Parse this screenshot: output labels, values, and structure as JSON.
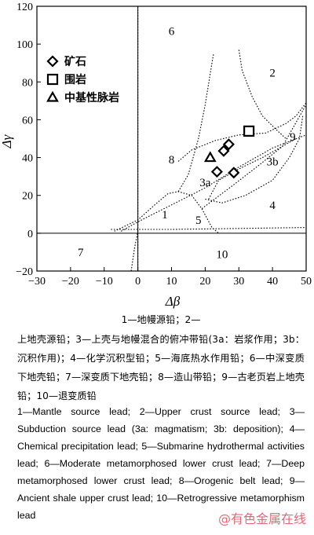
{
  "chart_data": {
    "type": "scatter",
    "xlabel": "Δβ",
    "ylabel": "Δγ",
    "xlim": [
      -30,
      50
    ],
    "ylim": [
      -20,
      120
    ],
    "xticks": [
      -30,
      -20,
      -10,
      0,
      10,
      20,
      30,
      40,
      50
    ],
    "yticks": [
      -20,
      0,
      20,
      40,
      60,
      80,
      100,
      120
    ],
    "grid": false,
    "legend_position": "top-left",
    "series": [
      {
        "name": "矿石",
        "marker": "diamond",
        "points": [
          [
            23.5,
            32.5
          ],
          [
            25.5,
            43.5
          ],
          [
            27,
            47
          ],
          [
            28.5,
            32
          ]
        ]
      },
      {
        "name": "围岩",
        "marker": "square",
        "points": [
          [
            33,
            54
          ]
        ]
      },
      {
        "name": "中基性脉岩",
        "marker": "triangle",
        "points": [
          [
            21.5,
            40
          ]
        ]
      }
    ],
    "region_labels": [
      {
        "text": "1",
        "x": 8,
        "y": 10
      },
      {
        "text": "2",
        "x": 40,
        "y": 85
      },
      {
        "text": "3a",
        "x": 20,
        "y": 27
      },
      {
        "text": "3b",
        "x": 40,
        "y": 38
      },
      {
        "text": "4",
        "x": 40,
        "y": 15
      },
      {
        "text": "5",
        "x": 18,
        "y": 7
      },
      {
        "text": "6",
        "x": 10,
        "y": 107
      },
      {
        "text": "7",
        "x": -17,
        "y": -10
      },
      {
        "text": "8",
        "x": 10,
        "y": 39
      },
      {
        "text": "9",
        "x": 46,
        "y": 51
      },
      {
        "text": "10",
        "x": 25,
        "y": -11
      }
    ]
  },
  "caption": {
    "cn_line1": "1—地幔源铅；2—",
    "cn_rest": "上地壳源铅；3—上壳与地幔混合的俯冲带铅(3a：岩浆作用；3b：沉积作用)；4—化学沉积型铅；5—海底热水作用铅；6—中深变质下地壳铅；7—深变质下地壳铅；8—造山带铅；9—古老页岩上地壳铅；10—退变质铅",
    "en": "1—Mantle source lead; 2—Upper crust source lead; 3—Subduction source lead (3a: magmatism; 3b: deposition); 4—Chemical precipitation lead; 5—Submarine hydrothermal activities lead; 6—Moderate metamorphosed lower crust lead; 7—Deep metamorphosed lower crust lead; 8—Orogenic belt lead; 9—Ancient shale upper crust lead; 10—Retrogressive metamorphism lead"
  },
  "watermark": "@有色金属在线"
}
